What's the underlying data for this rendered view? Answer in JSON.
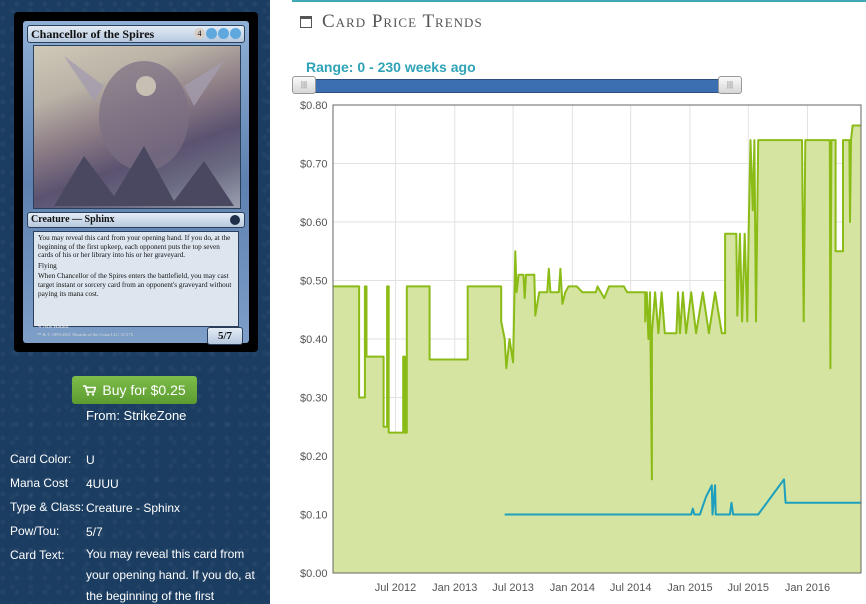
{
  "card": {
    "name": "Chancellor of the Spires",
    "mana_symbols": [
      "4",
      "U",
      "U",
      "U"
    ],
    "type_line": "Creature — Sphinx",
    "rules_text": [
      "You may reveal this card from your opening hand. If you do, at the beginning of the first upkeep, each opponent puts the top seven cards of his or her library into his or her graveyard.",
      "Flying",
      "When Chancellor of the Spires enters the battlefield, you may cast target instant or sorcery card from an opponent's graveyard without paying its mana cost."
    ],
    "power_toughness": "5/7",
    "artist": "Nils Hamm",
    "copyright": "™ & © 1993-2011 Wizards of the Coast LLC 31/175"
  },
  "buy": {
    "label": "Buy for $0.25",
    "from": "From: StrikeZone",
    "icon": "shopping-cart-icon"
  },
  "details": [
    {
      "label": "Card Color:",
      "value": "U"
    },
    {
      "label": "Mana Cost",
      "value": "4UUU"
    },
    {
      "label": "Type & Class:",
      "value": "Creature - Sphinx"
    },
    {
      "label": "Pow/Tou:",
      "value": "5/7"
    },
    {
      "label": "Card Text:",
      "value": "You may reveal this card from your opening hand. If you do, at the beginning of the first"
    }
  ],
  "header": {
    "title": "Card Price Trends",
    "icon": "calendar-icon"
  },
  "range": {
    "label": "Range: 0 - 230 weeks ago"
  },
  "colors": {
    "accent": "#3fa9b5",
    "slider": "#3b6fb1",
    "green_line": "#8bbb16",
    "green_fill": "#d5e5a1",
    "blue_line": "#1d9fbd",
    "buy_button": "#6aab3c",
    "panel_bg": "#1b3d61"
  },
  "chart_data": {
    "type": "line",
    "x_type": "date",
    "ylim": [
      0,
      0.8
    ],
    "y_ticks": [
      "$0.00",
      "$0.10",
      "$0.20",
      "$0.30",
      "$0.40",
      "$0.50",
      "$0.60",
      "$0.70",
      "$0.80"
    ],
    "x_ticks": [
      "Jul 2012",
      "Jan 2013",
      "Jul 2013",
      "Jan 2014",
      "Jul 2014",
      "Jan 2015",
      "Jul 2015",
      "Jan 2016"
    ],
    "xlim": [
      "2011-12-20",
      "2016-06-15"
    ],
    "grid": true,
    "series": [
      {
        "color": "#8bbb16",
        "fill": true,
        "points": [
          [
            "2011-12-20",
            0.49
          ],
          [
            "2012-03-10",
            0.49
          ],
          [
            "2012-03-10",
            0.3
          ],
          [
            "2012-03-28",
            0.3
          ],
          [
            "2012-03-28",
            0.49
          ],
          [
            "2012-04-02",
            0.49
          ],
          [
            "2012-04-02",
            0.37
          ],
          [
            "2012-05-25",
            0.37
          ],
          [
            "2012-05-25",
            0.25
          ],
          [
            "2012-06-05",
            0.25
          ],
          [
            "2012-06-05",
            0.49
          ],
          [
            "2012-06-10",
            0.49
          ],
          [
            "2012-06-10",
            0.24
          ],
          [
            "2012-07-25",
            0.24
          ],
          [
            "2012-07-25",
            0.37
          ],
          [
            "2012-07-30",
            0.37
          ],
          [
            "2012-07-30",
            0.24
          ],
          [
            "2012-08-05",
            0.24
          ],
          [
            "2012-08-05",
            0.49
          ],
          [
            "2012-10-15",
            0.49
          ],
          [
            "2012-10-15",
            0.365
          ],
          [
            "2013-02-10",
            0.365
          ],
          [
            "2013-02-10",
            0.49
          ],
          [
            "2013-05-25",
            0.49
          ],
          [
            "2013-05-25",
            0.43
          ],
          [
            "2013-06-05",
            0.4
          ],
          [
            "2013-06-10",
            0.35
          ],
          [
            "2013-06-20",
            0.4
          ],
          [
            "2013-07-01",
            0.36
          ],
          [
            "2013-07-08",
            0.55
          ],
          [
            "2013-07-12",
            0.48
          ],
          [
            "2013-07-18",
            0.51
          ],
          [
            "2013-08-02",
            0.51
          ],
          [
            "2013-08-06",
            0.47
          ],
          [
            "2013-08-10",
            0.51
          ],
          [
            "2013-09-05",
            0.51
          ],
          [
            "2013-09-08",
            0.44
          ],
          [
            "2013-09-20",
            0.48
          ],
          [
            "2013-10-15",
            0.48
          ],
          [
            "2013-10-20",
            0.52
          ],
          [
            "2013-10-25",
            0.48
          ],
          [
            "2013-11-20",
            0.48
          ],
          [
            "2013-11-25",
            0.52
          ],
          [
            "2013-12-01",
            0.46
          ],
          [
            "2013-12-10",
            0.48
          ],
          [
            "2013-12-20",
            0.49
          ],
          [
            "2014-01-15",
            0.49
          ],
          [
            "2014-02-01",
            0.48
          ],
          [
            "2014-03-15",
            0.48
          ],
          [
            "2014-03-20",
            0.49
          ],
          [
            "2014-04-10",
            0.47
          ],
          [
            "2014-04-25",
            0.49
          ],
          [
            "2014-06-10",
            0.49
          ],
          [
            "2014-06-20",
            0.48
          ],
          [
            "2014-08-15",
            0.48
          ],
          [
            "2014-08-15",
            0.43
          ],
          [
            "2014-08-20",
            0.48
          ],
          [
            "2014-08-25",
            0.4
          ],
          [
            "2014-08-30",
            0.48
          ],
          [
            "2014-09-05",
            0.16
          ],
          [
            "2014-09-05",
            0.41
          ],
          [
            "2014-09-15",
            0.48
          ],
          [
            "2014-09-25",
            0.41
          ],
          [
            "2014-10-05",
            0.48
          ],
          [
            "2014-10-15",
            0.41
          ],
          [
            "2014-11-20",
            0.41
          ],
          [
            "2014-11-25",
            0.48
          ],
          [
            "2014-12-01",
            0.41
          ],
          [
            "2014-12-10",
            0.48
          ],
          [
            "2014-12-20",
            0.41
          ],
          [
            "2015-01-05",
            0.48
          ],
          [
            "2015-01-20",
            0.41
          ],
          [
            "2015-02-10",
            0.48
          ],
          [
            "2015-03-01",
            0.41
          ],
          [
            "2015-03-20",
            0.48
          ],
          [
            "2015-04-10",
            0.41
          ],
          [
            "2015-04-20",
            0.41
          ],
          [
            "2015-04-20",
            0.58
          ],
          [
            "2015-05-25",
            0.58
          ],
          [
            "2015-05-28",
            0.44
          ],
          [
            "2015-06-05",
            0.58
          ],
          [
            "2015-06-12",
            0.43
          ],
          [
            "2015-06-20",
            0.58
          ],
          [
            "2015-06-28",
            0.43
          ],
          [
            "2015-07-02",
            0.58
          ],
          [
            "2015-07-08",
            0.74
          ],
          [
            "2015-07-15",
            0.62
          ],
          [
            "2015-07-20",
            0.74
          ],
          [
            "2015-07-25",
            0.43
          ],
          [
            "2015-08-01",
            0.74
          ],
          [
            "2015-12-15",
            0.74
          ],
          [
            "2015-12-20",
            0.43
          ],
          [
            "2015-12-25",
            0.74
          ],
          [
            "2016-03-10",
            0.74
          ],
          [
            "2016-03-12",
            0.35
          ],
          [
            "2016-03-15",
            0.74
          ],
          [
            "2016-03-28",
            0.74
          ],
          [
            "2016-03-28",
            0.55
          ],
          [
            "2016-04-20",
            0.55
          ],
          [
            "2016-04-20",
            0.74
          ],
          [
            "2016-05-10",
            0.74
          ],
          [
            "2016-05-12",
            0.6
          ],
          [
            "2016-05-15",
            0.74
          ],
          [
            "2016-05-20",
            0.765
          ],
          [
            "2016-06-15",
            0.765
          ]
        ]
      },
      {
        "color": "#1d9fbd",
        "fill": false,
        "points": [
          [
            "2013-06-05",
            0.1
          ],
          [
            "2015-01-05",
            0.1
          ],
          [
            "2015-01-10",
            0.11
          ],
          [
            "2015-01-15",
            0.1
          ],
          [
            "2015-02-01",
            0.1
          ],
          [
            "2015-02-20",
            0.13
          ],
          [
            "2015-03-10",
            0.15
          ],
          [
            "2015-03-12",
            0.1
          ],
          [
            "2015-03-20",
            0.15
          ],
          [
            "2015-03-22",
            0.1
          ],
          [
            "2015-05-05",
            0.1
          ],
          [
            "2015-05-10",
            0.12
          ],
          [
            "2015-05-15",
            0.1
          ],
          [
            "2015-08-01",
            0.1
          ],
          [
            "2015-10-20",
            0.16
          ],
          [
            "2015-10-25",
            0.12
          ],
          [
            "2016-06-15",
            0.12
          ]
        ]
      }
    ]
  }
}
